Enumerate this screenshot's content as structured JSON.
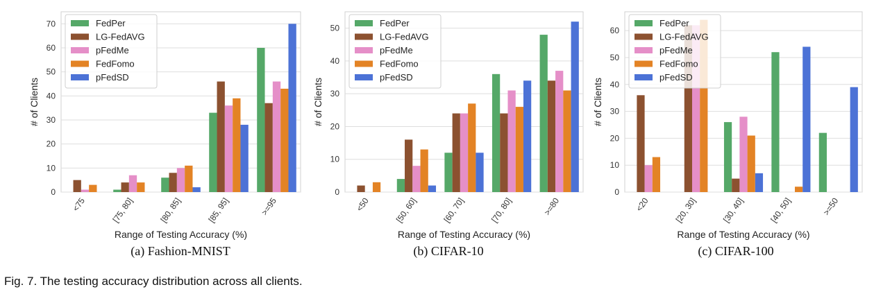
{
  "caption": "Fig. 7. The testing accuracy distribution across all clients.",
  "colors": {
    "FedPer": "#55a868",
    "LG-FedAVG": "#8c5130",
    "pFedMe": "#e58fc8",
    "FedFomo": "#e38325",
    "pFedSD": "#4c72d6"
  },
  "chart_data": [
    {
      "type": "bar",
      "subcaption": "(a)  Fashion-MNIST",
      "xlabel": "Range of Testing Accuracy (%)",
      "ylabel": "# of Clients",
      "categories": [
        "<75",
        "[75, 80]",
        "[80, 85]",
        "[85, 95]",
        ">=95"
      ],
      "yticks": [
        0,
        10,
        20,
        30,
        40,
        50,
        60,
        70
      ],
      "ylim": [
        0,
        75
      ],
      "grid": true,
      "legend_position": "top-left",
      "series": [
        {
          "name": "FedPer",
          "values": [
            0,
            1,
            6,
            33,
            60
          ]
        },
        {
          "name": "LG-FedAVG",
          "values": [
            5,
            4,
            8,
            46,
            37
          ]
        },
        {
          "name": "pFedMe",
          "values": [
            1,
            7,
            10,
            36,
            46
          ]
        },
        {
          "name": "FedFomo",
          "values": [
            3,
            4,
            11,
            39,
            43
          ]
        },
        {
          "name": "pFedSD",
          "values": [
            0,
            0,
            2,
            28,
            70
          ]
        }
      ]
    },
    {
      "type": "bar",
      "subcaption": "(b)  CIFAR-10",
      "xlabel": "Range of Testing Accuracy (%)",
      "ylabel": "# of Clients",
      "categories": [
        "<50",
        "[50, 60]",
        "[60, 70]",
        "[70, 80]",
        ">=80"
      ],
      "yticks": [
        0,
        10,
        20,
        30,
        40,
        50
      ],
      "ylim": [
        0,
        55
      ],
      "grid": true,
      "legend_position": "top-left",
      "series": [
        {
          "name": "FedPer",
          "values": [
            0,
            4,
            12,
            36,
            48
          ]
        },
        {
          "name": "LG-FedAVG",
          "values": [
            2,
            16,
            24,
            24,
            34
          ]
        },
        {
          "name": "pFedMe",
          "values": [
            0,
            8,
            24,
            31,
            37
          ]
        },
        {
          "name": "FedFomo",
          "values": [
            3,
            13,
            27,
            26,
            31
          ]
        },
        {
          "name": "pFedSD",
          "values": [
            0,
            2,
            12,
            34,
            52
          ]
        }
      ]
    },
    {
      "type": "bar",
      "subcaption": "(c)  CIFAR-100",
      "xlabel": "Range of Testing Accuracy (%)",
      "ylabel": "# of Clients",
      "categories": [
        "<20",
        "[20, 30]",
        "[30, 40]",
        "[40, 50]",
        ">=50"
      ],
      "yticks": [
        0,
        10,
        20,
        30,
        40,
        50,
        60
      ],
      "ylim": [
        0,
        67
      ],
      "grid": true,
      "legend_position": "top-left",
      "series": [
        {
          "name": "FedPer",
          "values": [
            0,
            0,
            26,
            52,
            22
          ]
        },
        {
          "name": "LG-FedAVG",
          "values": [
            36,
            62,
            5,
            0,
            0
          ]
        },
        {
          "name": "pFedMe",
          "values": [
            10,
            62,
            28,
            0,
            0
          ]
        },
        {
          "name": "FedFomo",
          "values": [
            13,
            64,
            21,
            2,
            0
          ]
        },
        {
          "name": "pFedSD",
          "values": [
            0,
            0,
            7,
            54,
            39
          ]
        }
      ]
    }
  ]
}
